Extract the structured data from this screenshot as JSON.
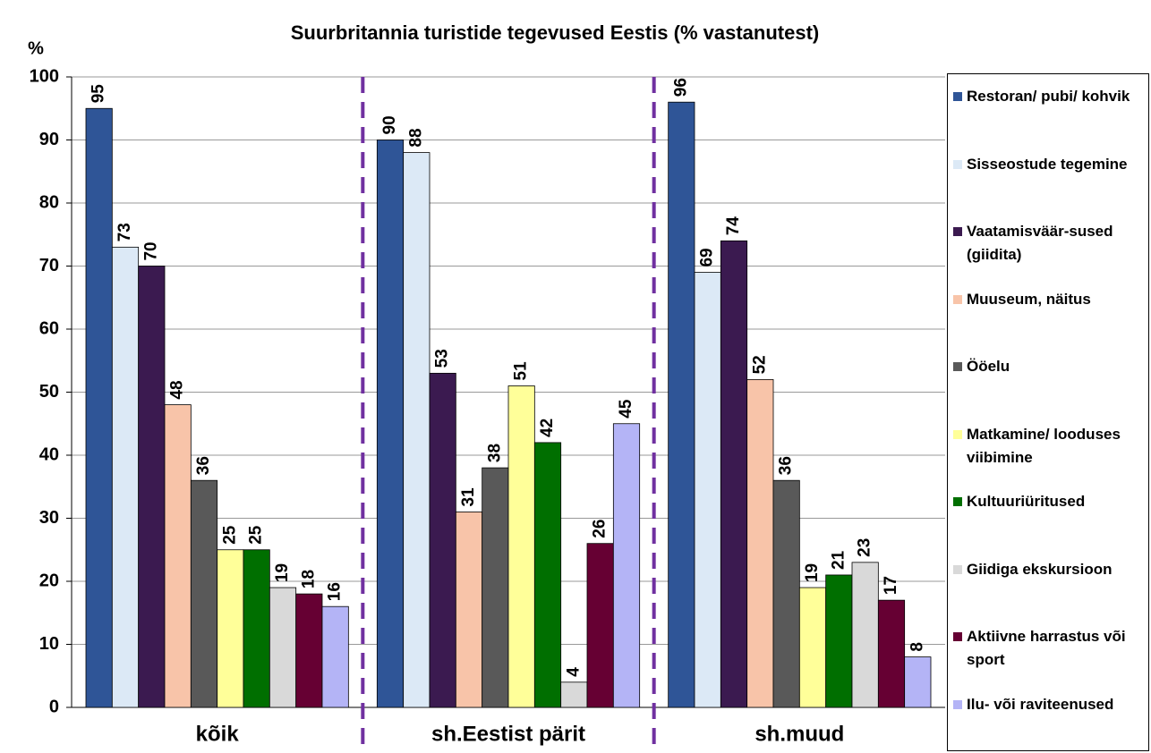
{
  "chart_data": {
    "type": "bar",
    "title": "Suurbritannia turistide tegevused Eestis (% vastanutest)",
    "y_label": "%",
    "categories": [
      "kõik",
      "sh.Eestist pärit",
      "sh.muud"
    ],
    "series": [
      {
        "name": "Restoran/ pubi/ kohvik",
        "color": "#2f5597",
        "values": [
          95,
          90,
          96
        ]
      },
      {
        "name": "Sisseostude tegemine",
        "color": "#dce9f6",
        "values": [
          73,
          88,
          69
        ]
      },
      {
        "name": "Vaatamisväär-sused (giidita)",
        "color": "#3b1a50",
        "values": [
          70,
          53,
          74
        ]
      },
      {
        "name": "Muuseum, näitus",
        "color": "#f8c4a9",
        "values": [
          48,
          31,
          52
        ]
      },
      {
        "name": "Ööelu",
        "color": "#595959",
        "values": [
          36,
          38,
          36
        ]
      },
      {
        "name": "Matkamine/ looduses viibimine",
        "color": "#ffff99",
        "values": [
          25,
          51,
          19
        ]
      },
      {
        "name": "Kultuuriüritused",
        "color": "#006f00",
        "values": [
          25,
          42,
          21
        ]
      },
      {
        "name": "Giidiga ekskursioon",
        "color": "#d9d9d9",
        "values": [
          19,
          4,
          23
        ]
      },
      {
        "name": "Aktiivne harrastus või sport",
        "color": "#660033",
        "values": [
          18,
          26,
          17
        ]
      },
      {
        "name": "Ilu- või raviteenused",
        "color": "#b4b4f6",
        "values": [
          16,
          45,
          8
        ]
      }
    ],
    "ylim": [
      0,
      100
    ],
    "yticks": [
      0,
      10,
      20,
      30,
      40,
      50,
      60,
      70,
      80,
      90,
      100
    ],
    "grid": true,
    "legend": "right"
  }
}
